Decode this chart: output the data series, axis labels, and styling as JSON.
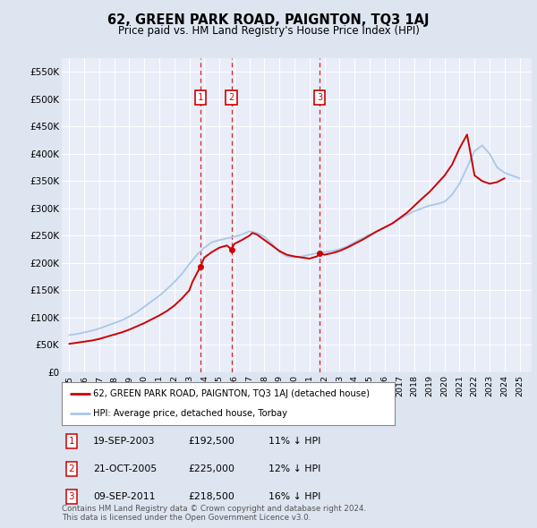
{
  "title": "62, GREEN PARK ROAD, PAIGNTON, TQ3 1AJ",
  "subtitle": "Price paid vs. HM Land Registry's House Price Index (HPI)",
  "background_color": "#dde5f0",
  "plot_bg_color": "#e8edf8",
  "grid_color": "#ffffff",
  "ylim": [
    0,
    575000
  ],
  "yticks": [
    0,
    50000,
    100000,
    150000,
    200000,
    250000,
    300000,
    350000,
    400000,
    450000,
    500000,
    550000
  ],
  "ytick_labels": [
    "£0",
    "£50K",
    "£100K",
    "£150K",
    "£200K",
    "£250K",
    "£300K",
    "£350K",
    "£400K",
    "£450K",
    "£500K",
    "£550K"
  ],
  "hpi_color": "#a8c8e8",
  "price_paid_color": "#cc0000",
  "transaction_prices": [
    192500,
    225000,
    218500
  ],
  "transaction_years": [
    2003.72,
    2005.8,
    2011.69
  ],
  "transaction_labels": [
    "1",
    "2",
    "3"
  ],
  "footer_text": "Contains HM Land Registry data © Crown copyright and database right 2024.\nThis data is licensed under the Open Government Licence v3.0.",
  "table_data": [
    [
      "1",
      "19-SEP-2003",
      "£192,500",
      "11% ↓ HPI"
    ],
    [
      "2",
      "21-OCT-2005",
      "£225,000",
      "12% ↓ HPI"
    ],
    [
      "3",
      "09-SEP-2011",
      "£218,500",
      "16% ↓ HPI"
    ]
  ],
  "hpi_x": [
    1995,
    1995.5,
    1996,
    1996.5,
    1997,
    1997.5,
    1998,
    1998.5,
    1999,
    1999.5,
    2000,
    2000.5,
    2001,
    2001.5,
    2002,
    2002.5,
    2003,
    2003.5,
    2004,
    2004.5,
    2005,
    2005.5,
    2006,
    2006.5,
    2007,
    2007.5,
    2008,
    2008.5,
    2009,
    2009.5,
    2010,
    2010.5,
    2011,
    2011.5,
    2012,
    2012.5,
    2013,
    2013.5,
    2014,
    2014.5,
    2015,
    2015.5,
    2016,
    2016.5,
    2017,
    2017.5,
    2018,
    2018.5,
    2019,
    2019.5,
    2020,
    2020.5,
    2021,
    2021.5,
    2022,
    2022.5,
    2023,
    2023.5,
    2024,
    2024.5,
    2025
  ],
  "hpi_y": [
    68000,
    70000,
    73000,
    76000,
    80000,
    85000,
    90000,
    95000,
    102000,
    110000,
    120000,
    130000,
    140000,
    152000,
    165000,
    180000,
    198000,
    215000,
    228000,
    238000,
    242000,
    245000,
    248000,
    252000,
    258000,
    255000,
    248000,
    235000,
    220000,
    212000,
    210000,
    212000,
    215000,
    218000,
    220000,
    222000,
    225000,
    230000,
    238000,
    245000,
    252000,
    258000,
    265000,
    272000,
    280000,
    288000,
    295000,
    300000,
    305000,
    308000,
    312000,
    325000,
    345000,
    375000,
    405000,
    415000,
    400000,
    375000,
    365000,
    360000,
    355000
  ],
  "pp_x": [
    1995,
    1995.5,
    1996,
    1996.5,
    1997,
    1997.5,
    1998,
    1998.5,
    1999,
    1999.5,
    2000,
    2000.5,
    2001,
    2001.5,
    2002,
    2002.5,
    2003,
    2003.2,
    2003.72,
    2004,
    2004.5,
    2005,
    2005.5,
    2005.8,
    2006,
    2006.5,
    2007,
    2007.2,
    2007.5,
    2008,
    2008.5,
    2009,
    2009.5,
    2010,
    2010.5,
    2011,
    2011.5,
    2011.69,
    2012,
    2012.5,
    2013,
    2013.5,
    2014,
    2014.5,
    2015,
    2015.5,
    2016,
    2016.5,
    2017,
    2017.5,
    2018,
    2018.5,
    2019,
    2019.5,
    2020,
    2020.5,
    2021,
    2021.5,
    2022,
    2022.5,
    2023,
    2023.5,
    2024
  ],
  "pp_y": [
    52000,
    54000,
    56000,
    58000,
    61000,
    65000,
    69000,
    73000,
    78000,
    84000,
    90000,
    97000,
    104000,
    112000,
    122000,
    135000,
    150000,
    165000,
    192500,
    210000,
    220000,
    228000,
    232000,
    225000,
    235000,
    242000,
    250000,
    255000,
    252000,
    242000,
    232000,
    222000,
    215000,
    212000,
    210000,
    208000,
    212000,
    218500,
    215000,
    218000,
    222000,
    228000,
    235000,
    242000,
    250000,
    258000,
    265000,
    272000,
    282000,
    292000,
    305000,
    318000,
    330000,
    345000,
    360000,
    380000,
    410000,
    435000,
    360000,
    350000,
    345000,
    348000,
    355000
  ]
}
